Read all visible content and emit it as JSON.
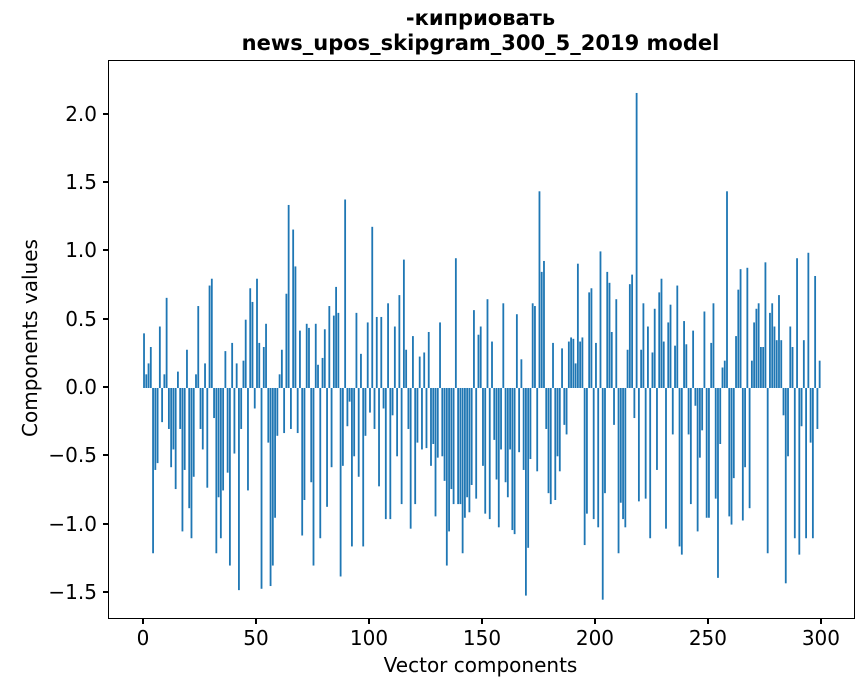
{
  "figure": {
    "background": "#ffffff",
    "text_color": "#000000"
  },
  "chart_data": {
    "type": "bar",
    "title_line1": "-киприовать",
    "title_line2": "news_upos_skipgram_300_5_2019 model",
    "xlabel": "Vector components",
    "ylabel": "Components values",
    "bar_color": "#1f77b4",
    "grid": false,
    "legend_position": "none",
    "n_bars": 300,
    "x_start": 0,
    "xlim": [
      -15.5,
      314.2
    ],
    "ylim": [
      -1.684,
      2.394
    ],
    "bar_data_width": 0.8,
    "xticks": [
      {
        "value": 0,
        "label": "0"
      },
      {
        "value": 50,
        "label": "50"
      },
      {
        "value": 100,
        "label": "100"
      },
      {
        "value": 150,
        "label": "150"
      },
      {
        "value": 200,
        "label": "200"
      },
      {
        "value": 250,
        "label": "250"
      },
      {
        "value": 300,
        "label": "300"
      }
    ],
    "yticks": [
      {
        "value": 2.0,
        "label": "2.0"
      },
      {
        "value": 1.5,
        "label": "1.5"
      },
      {
        "value": 1.0,
        "label": "1.0"
      },
      {
        "value": 0.5,
        "label": "0.5"
      },
      {
        "value": 0.0,
        "label": "0.0"
      },
      {
        "value": -0.5,
        "label": "−0.5"
      },
      {
        "value": -1.0,
        "label": "−1.0"
      },
      {
        "value": -1.5,
        "label": "−1.5"
      }
    ],
    "values": [
      0.4,
      0.1,
      0.18,
      0.3,
      -1.21,
      -0.6,
      -0.55,
      0.45,
      -0.25,
      0.1,
      0.66,
      -0.3,
      -0.58,
      -0.45,
      -0.74,
      0.12,
      -0.3,
      -1.05,
      -0.6,
      0.28,
      -0.88,
      -1.1,
      -0.65,
      0.1,
      0.6,
      -0.3,
      -0.45,
      0.18,
      -0.73,
      0.75,
      0.8,
      -0.22,
      -1.21,
      -0.8,
      -1.1,
      -0.75,
      0.27,
      -0.62,
      -1.3,
      0.33,
      -0.48,
      0.18,
      -1.48,
      -0.3,
      0.2,
      0.5,
      -0.75,
      0.73,
      0.63,
      -0.15,
      0.8,
      0.33,
      -1.47,
      0.3,
      0.47,
      -0.4,
      -1.45,
      -1.3,
      -0.95,
      -0.35,
      0.1,
      0.28,
      -0.33,
      0.69,
      1.34,
      -0.3,
      1.16,
      0.89,
      -0.33,
      0.42,
      -1.08,
      -0.82,
      0.47,
      0.44,
      -0.69,
      -1.3,
      0.47,
      0.17,
      -1.1,
      0.22,
      0.43,
      -0.87,
      0.6,
      -0.58,
      0.53,
      0.74,
      0.55,
      -1.38,
      -0.57,
      1.38,
      -0.28,
      -0.1,
      -1.16,
      -0.5,
      0.55,
      -0.65,
      0.25,
      -1.16,
      -0.35,
      0.48,
      -0.18,
      1.18,
      -0.3,
      0.52,
      -0.72,
      0.52,
      -0.15,
      -0.96,
      0.62,
      -0.96,
      -0.2,
      0.45,
      -0.5,
      0.68,
      -0.85,
      0.94,
      0.28,
      -0.3,
      -1.03,
      0.38,
      -0.85,
      -0.4,
      0.23,
      -0.45,
      0.26,
      -0.44,
      0.41,
      -0.57,
      -0.41,
      -0.94,
      -0.51,
      0.48,
      -0.5,
      -0.68,
      -1.3,
      -1.05,
      -0.74,
      -0.85,
      0.95,
      -0.85,
      -0.85,
      -1.21,
      -0.95,
      -0.8,
      -0.91,
      -0.71,
      0.57,
      -0.81,
      0.39,
      0.45,
      -0.57,
      -0.92,
      0.65,
      -0.96,
      0.34,
      -0.38,
      -0.67,
      -1.02,
      -0.45,
      0.62,
      -0.69,
      -0.8,
      -0.45,
      -1.04,
      -1.07,
      0.54,
      -0.47,
      0.21,
      -0.6,
      -1.52,
      -1.17,
      -0.52,
      0.62,
      0.6,
      -0.61,
      1.44,
      0.85,
      0.93,
      -0.3,
      -0.77,
      -0.85,
      0.33,
      -0.82,
      -0.5,
      -0.61,
      0.29,
      -0.27,
      -0.34,
      0.34,
      0.37,
      0.36,
      0.18,
      0.91,
      0.34,
      0.37,
      -1.15,
      -0.92,
      0.7,
      0.73,
      -0.96,
      0.33,
      -1.02,
      1.0,
      -1.55,
      -0.77,
      0.85,
      0.77,
      0.41,
      -0.27,
      0.65,
      -1.21,
      -0.84,
      -0.96,
      -1.02,
      0.28,
      0.76,
      0.83,
      -0.22,
      2.16,
      -0.83,
      0.28,
      0.62,
      -0.81,
      0.45,
      -1.1,
      0.26,
      0.58,
      -0.6,
      0.7,
      0.8,
      0.34,
      -1.03,
      0.48,
      0.61,
      -0.34,
      0.31,
      0.75,
      -1.16,
      -1.22,
      0.49,
      0.32,
      -0.34,
      -0.85,
      0.42,
      -0.13,
      -1.05,
      -0.51,
      -0.31,
      0.56,
      -0.95,
      -0.95,
      0.33,
      0.62,
      -0.81,
      -1.39,
      -0.41,
      0.15,
      0.2,
      1.44,
      -0.94,
      -1.0,
      -0.66,
      0.38,
      0.72,
      0.87,
      -0.97,
      -0.58,
      0.88,
      -0.88,
      0.2,
      0.48,
      0.58,
      0.62,
      0.3,
      0.3,
      0.92,
      -1.21,
      0.55,
      0.62,
      0.45,
      0.35,
      0.68,
      0.35,
      -0.2,
      -1.43,
      -0.5,
      0.45,
      0.3,
      -1.1,
      0.95,
      -1.22,
      -0.28,
      0.35,
      -1.1,
      0.99,
      -0.4,
      -1.1,
      0.82,
      -0.3,
      0.2
    ]
  }
}
